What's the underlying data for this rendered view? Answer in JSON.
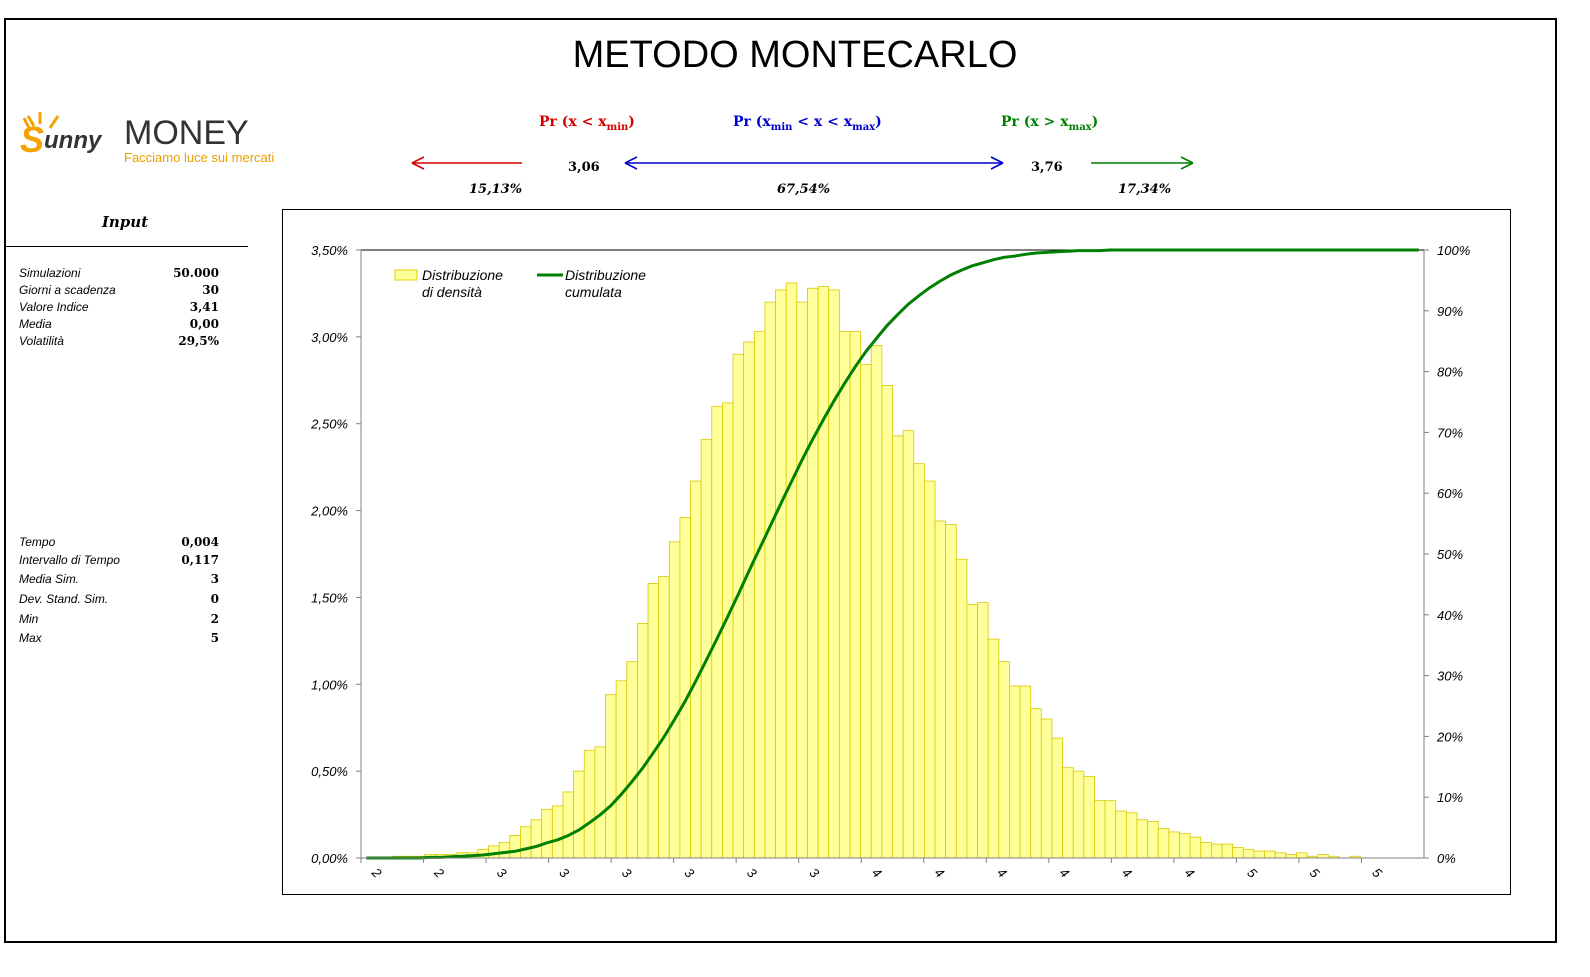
{
  "title": "METODO MONTECARLO",
  "logo": {
    "brand_sunny": "Sunny",
    "brand_money": "MONEY",
    "tagline": "Facciamo luce sui mercati"
  },
  "probabilities": {
    "left": {
      "pre": "Pr (",
      "x": "x",
      "op": " < ",
      "xbound": "x",
      "sub": "min",
      "post": ")",
      "color": "#d40000",
      "value": "15,13%"
    },
    "middle": {
      "pre": "Pr (",
      "x1": "x",
      "sub1": "min",
      "op1": " < ",
      "x": "x",
      "op2": " < ",
      "x2": "x",
      "sub2": "max",
      "post": ")",
      "color": "#0000cc",
      "value": "67,54%"
    },
    "right": {
      "pre": "Pr (",
      "x": "x",
      "op": " > ",
      "xbound": "x",
      "sub": "max",
      "post": ")",
      "color": "#008000",
      "value": "17,34%"
    },
    "xmin_value": "3,06",
    "xmax_value": "3,76"
  },
  "input": {
    "heading": "Input",
    "params": [
      {
        "label": "Simulazioni",
        "value": "50.000"
      },
      {
        "label": "Giorni a scadenza",
        "value": "30"
      },
      {
        "label": "Valore Indice",
        "value": "3,41"
      },
      {
        "label": "Media",
        "value": "0,00"
      },
      {
        "label": "Volatilità",
        "value": "29,5%"
      }
    ],
    "results": [
      {
        "label": "Tempo",
        "value": "0,004"
      },
      {
        "label": "Intervallo di Tempo",
        "value": "0,117"
      },
      {
        "label": "Media Sim.",
        "value": "3"
      },
      {
        "label": "Dev. Stand. Sim.",
        "value": "0"
      },
      {
        "label": "Min",
        "value": "2"
      },
      {
        "label": "Max",
        "value": "5"
      }
    ]
  },
  "chart_data": {
    "type": "bar",
    "legend": [
      {
        "name_line1": "Distribuzione",
        "name_line2": "di densità",
        "kind": "bar",
        "color": "#ffff99",
        "stroke": "#e0d000"
      },
      {
        "name_line1": "Distribuzione",
        "name_line2": "cumulata",
        "kind": "line",
        "color": "#008000"
      }
    ],
    "legend_position": "top-left",
    "y_left": {
      "ticks": [
        "0,00%",
        "0,50%",
        "1,00%",
        "1,50%",
        "2,00%",
        "2,50%",
        "3,00%",
        "3,50%"
      ],
      "min": 0,
      "max": 3.5
    },
    "y_right": {
      "ticks": [
        "0%",
        "10%",
        "20%",
        "30%",
        "40%",
        "50%",
        "60%",
        "70%",
        "80%",
        "90%",
        "100%"
      ],
      "min": 0,
      "max": 100
    },
    "x_tick_labels": [
      "2",
      "2",
      "3",
      "3",
      "3",
      "3",
      "3",
      "3",
      "4",
      "4",
      "4",
      "4",
      "4",
      "4",
      "5",
      "5",
      "5"
    ],
    "density_percent": [
      0.0,
      0.0,
      0.0,
      0.01,
      0.01,
      0.01,
      0.02,
      0.02,
      0.02,
      0.03,
      0.03,
      0.05,
      0.07,
      0.09,
      0.13,
      0.18,
      0.22,
      0.28,
      0.3,
      0.38,
      0.5,
      0.62,
      0.64,
      0.94,
      1.02,
      1.13,
      1.35,
      1.58,
      1.62,
      1.82,
      1.96,
      2.17,
      2.41,
      2.6,
      2.62,
      2.9,
      2.97,
      3.03,
      3.2,
      3.27,
      3.31,
      3.2,
      3.28,
      3.29,
      3.27,
      3.03,
      3.03,
      2.84,
      2.95,
      2.72,
      2.43,
      2.46,
      2.27,
      2.17,
      1.94,
      1.92,
      1.72,
      1.46,
      1.47,
      1.26,
      1.13,
      0.99,
      0.99,
      0.86,
      0.8,
      0.69,
      0.52,
      0.5,
      0.47,
      0.33,
      0.33,
      0.27,
      0.26,
      0.22,
      0.21,
      0.17,
      0.15,
      0.14,
      0.12,
      0.09,
      0.08,
      0.08,
      0.06,
      0.05,
      0.04,
      0.04,
      0.03,
      0.02,
      0.03,
      0.01,
      0.02,
      0.01,
      0.0,
      0.01,
      0.0,
      0.0,
      0.0,
      0.0,
      0.0,
      0.0
    ],
    "cumulative_percent": [
      0,
      0,
      0,
      0,
      0,
      0,
      0.1,
      0.1,
      0.2,
      0.3,
      0.4,
      0.5,
      0.7,
      0.9,
      1.1,
      1.5,
      1.9,
      2.5,
      3.0,
      3.7,
      4.6,
      5.8,
      7.1,
      8.6,
      10.5,
      12.6,
      14.8,
      17.3,
      19.9,
      22.8,
      25.8,
      29.1,
      32.6,
      36.1,
      39.7,
      43.4,
      47.2,
      50.9,
      54.6,
      58.3,
      61.9,
      65.5,
      68.9,
      72.1,
      75.2,
      78.1,
      80.8,
      83.3,
      85.5,
      87.6,
      89.4,
      91.1,
      92.5,
      93.8,
      94.9,
      95.9,
      96.7,
      97.4,
      97.9,
      98.4,
      98.8,
      99.0,
      99.3,
      99.5,
      99.6,
      99.7,
      99.8,
      99.9,
      99.9,
      99.9,
      100,
      100,
      100,
      100,
      100,
      100,
      100,
      100,
      100,
      100,
      100,
      100,
      100,
      100,
      100,
      100,
      100,
      100,
      100,
      100,
      100,
      100,
      100,
      100,
      100,
      100,
      100,
      100,
      100,
      100
    ]
  }
}
